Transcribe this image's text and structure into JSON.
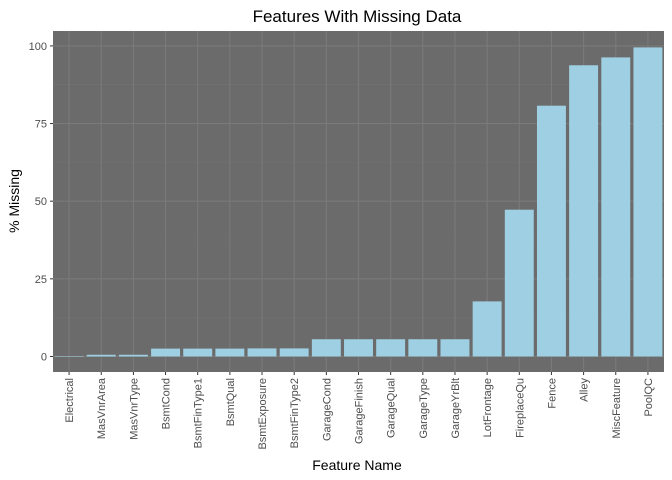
{
  "chart_data": {
    "type": "bar",
    "title": "Features With Missing Data",
    "xlabel": "Feature Name",
    "ylabel": "% Missing",
    "categories": [
      "Electrical",
      "MasVnrArea",
      "MasVnrType",
      "BsmtCond",
      "BsmtFinType1",
      "BsmtQual",
      "BsmtExposure",
      "BsmtFinType2",
      "GarageCond",
      "GarageFinish",
      "GarageQual",
      "GarageType",
      "GarageYrBlt",
      "LotFrontage",
      "FireplaceQu",
      "Fence",
      "Alley",
      "MiscFeature",
      "PoolQC"
    ],
    "values": [
      0.07,
      0.55,
      0.55,
      2.53,
      2.53,
      2.53,
      2.6,
      2.6,
      5.55,
      5.55,
      5.55,
      5.55,
      5.55,
      17.74,
      47.26,
      80.75,
      93.77,
      96.3,
      99.52
    ],
    "ylim": [
      -5,
      104.8
    ],
    "yticks": [
      0,
      25,
      50,
      75,
      100
    ],
    "grid": true,
    "colors": {
      "panel": "#6b6b6b",
      "grid_major": "#7a7a7a",
      "grid_minor": "#727272",
      "bar": "#9ecfe2"
    }
  }
}
